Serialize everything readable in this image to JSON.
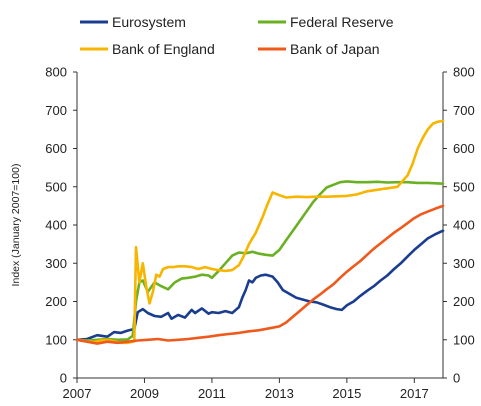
{
  "chart_data": {
    "type": "line",
    "title": "",
    "xlabel": "",
    "ylabel": "Index (January 2007=100)",
    "xlim": [
      2007,
      2017.85
    ],
    "ylim": [
      0,
      800
    ],
    "grid": false,
    "legend_position": "top",
    "x_ticks": [
      2007,
      2009,
      2011,
      2013,
      2015,
      2017
    ],
    "y_ticks": [
      0,
      100,
      200,
      300,
      400,
      500,
      600,
      700,
      800
    ],
    "x_tick_labels": [
      "2007",
      "2009",
      "2011",
      "2013",
      "2015",
      "2017"
    ],
    "y_tick_labels": [
      "0",
      "100",
      "200",
      "300",
      "400",
      "500",
      "600",
      "700",
      "800"
    ],
    "series": [
      {
        "name": "Eurosystem",
        "color": "#1a3d8f",
        "points": [
          [
            2007.0,
            100
          ],
          [
            2007.3,
            102
          ],
          [
            2007.6,
            112
          ],
          [
            2007.9,
            108
          ],
          [
            2008.1,
            120
          ],
          [
            2008.3,
            118
          ],
          [
            2008.5,
            124
          ],
          [
            2008.7,
            128
          ],
          [
            2008.8,
            172
          ],
          [
            2008.95,
            180
          ],
          [
            2009.1,
            170
          ],
          [
            2009.3,
            162
          ],
          [
            2009.5,
            160
          ],
          [
            2009.7,
            170
          ],
          [
            2009.8,
            155
          ],
          [
            2010.0,
            165
          ],
          [
            2010.2,
            158
          ],
          [
            2010.4,
            178
          ],
          [
            2010.5,
            170
          ],
          [
            2010.7,
            182
          ],
          [
            2010.9,
            168
          ],
          [
            2011.0,
            172
          ],
          [
            2011.2,
            170
          ],
          [
            2011.4,
            175
          ],
          [
            2011.6,
            170
          ],
          [
            2011.8,
            185
          ],
          [
            2011.9,
            210
          ],
          [
            2012.0,
            230
          ],
          [
            2012.1,
            255
          ],
          [
            2012.2,
            250
          ],
          [
            2012.3,
            262
          ],
          [
            2012.45,
            268
          ],
          [
            2012.6,
            270
          ],
          [
            2012.8,
            265
          ],
          [
            2012.95,
            250
          ],
          [
            2013.1,
            230
          ],
          [
            2013.3,
            220
          ],
          [
            2013.5,
            210
          ],
          [
            2013.7,
            205
          ],
          [
            2013.9,
            200
          ],
          [
            2014.1,
            198
          ],
          [
            2014.3,
            192
          ],
          [
            2014.5,
            185
          ],
          [
            2014.7,
            180
          ],
          [
            2014.85,
            178
          ],
          [
            2015.0,
            190
          ],
          [
            2015.2,
            200
          ],
          [
            2015.4,
            215
          ],
          [
            2015.6,
            228
          ],
          [
            2015.8,
            240
          ],
          [
            2016.0,
            255
          ],
          [
            2016.2,
            268
          ],
          [
            2016.4,
            285
          ],
          [
            2016.6,
            300
          ],
          [
            2016.8,
            318
          ],
          [
            2017.0,
            335
          ],
          [
            2017.2,
            350
          ],
          [
            2017.4,
            365
          ],
          [
            2017.6,
            375
          ],
          [
            2017.85,
            385
          ]
        ]
      },
      {
        "name": "Federal Reserve",
        "color": "#6ab023",
        "points": [
          [
            2007.0,
            100
          ],
          [
            2007.3,
            98
          ],
          [
            2007.6,
            100
          ],
          [
            2007.9,
            102
          ],
          [
            2008.2,
            100
          ],
          [
            2008.5,
            101
          ],
          [
            2008.65,
            110
          ],
          [
            2008.75,
            200
          ],
          [
            2008.85,
            250
          ],
          [
            2008.95,
            255
          ],
          [
            2009.1,
            225
          ],
          [
            2009.3,
            250
          ],
          [
            2009.5,
            240
          ],
          [
            2009.7,
            232
          ],
          [
            2009.9,
            250
          ],
          [
            2010.1,
            260
          ],
          [
            2010.3,
            262
          ],
          [
            2010.5,
            265
          ],
          [
            2010.7,
            270
          ],
          [
            2010.9,
            268
          ],
          [
            2011.0,
            262
          ],
          [
            2011.2,
            280
          ],
          [
            2011.4,
            300
          ],
          [
            2011.6,
            320
          ],
          [
            2011.8,
            328
          ],
          [
            2012.0,
            326
          ],
          [
            2012.2,
            330
          ],
          [
            2012.4,
            325
          ],
          [
            2012.6,
            322
          ],
          [
            2012.8,
            320
          ],
          [
            2013.0,
            335
          ],
          [
            2013.2,
            360
          ],
          [
            2013.4,
            385
          ],
          [
            2013.6,
            410
          ],
          [
            2013.8,
            435
          ],
          [
            2014.0,
            460
          ],
          [
            2014.2,
            480
          ],
          [
            2014.4,
            498
          ],
          [
            2014.6,
            505
          ],
          [
            2014.8,
            512
          ],
          [
            2015.0,
            514
          ],
          [
            2015.3,
            512
          ],
          [
            2015.6,
            512
          ],
          [
            2015.9,
            513
          ],
          [
            2016.2,
            511
          ],
          [
            2016.5,
            512
          ],
          [
            2016.8,
            512
          ],
          [
            2017.1,
            510
          ],
          [
            2017.4,
            510
          ],
          [
            2017.85,
            508
          ]
        ]
      },
      {
        "name": "Bank of England",
        "color": "#f7b500",
        "points": [
          [
            2007.0,
            100
          ],
          [
            2007.3,
            96
          ],
          [
            2007.5,
            94
          ],
          [
            2007.7,
            98
          ],
          [
            2007.9,
            100
          ],
          [
            2008.1,
            96
          ],
          [
            2008.3,
            92
          ],
          [
            2008.5,
            92
          ],
          [
            2008.7,
            96
          ],
          [
            2008.75,
            342
          ],
          [
            2008.85,
            250
          ],
          [
            2008.95,
            300
          ],
          [
            2009.05,
            240
          ],
          [
            2009.15,
            195
          ],
          [
            2009.25,
            225
          ],
          [
            2009.35,
            270
          ],
          [
            2009.45,
            265
          ],
          [
            2009.55,
            285
          ],
          [
            2009.7,
            290
          ],
          [
            2009.85,
            290
          ],
          [
            2010.0,
            292
          ],
          [
            2010.2,
            292
          ],
          [
            2010.4,
            290
          ],
          [
            2010.6,
            285
          ],
          [
            2010.8,
            290
          ],
          [
            2011.0,
            285
          ],
          [
            2011.2,
            282
          ],
          [
            2011.4,
            280
          ],
          [
            2011.6,
            282
          ],
          [
            2011.8,
            295
          ],
          [
            2011.95,
            320
          ],
          [
            2012.1,
            350
          ],
          [
            2012.3,
            380
          ],
          [
            2012.5,
            420
          ],
          [
            2012.65,
            455
          ],
          [
            2012.8,
            485
          ],
          [
            2013.0,
            478
          ],
          [
            2013.2,
            472
          ],
          [
            2013.5,
            474
          ],
          [
            2013.8,
            473
          ],
          [
            2014.1,
            474
          ],
          [
            2014.4,
            474
          ],
          [
            2014.7,
            475
          ],
          [
            2015.0,
            476
          ],
          [
            2015.3,
            480
          ],
          [
            2015.6,
            488
          ],
          [
            2015.9,
            492
          ],
          [
            2016.2,
            496
          ],
          [
            2016.5,
            500
          ],
          [
            2016.8,
            530
          ],
          [
            2016.95,
            560
          ],
          [
            2017.1,
            600
          ],
          [
            2017.25,
            628
          ],
          [
            2017.4,
            650
          ],
          [
            2017.55,
            665
          ],
          [
            2017.7,
            670
          ],
          [
            2017.85,
            672
          ]
        ]
      },
      {
        "name": "Bank of Japan",
        "color": "#ef5a1c",
        "points": [
          [
            2007.0,
            100
          ],
          [
            2007.3,
            95
          ],
          [
            2007.6,
            90
          ],
          [
            2007.9,
            95
          ],
          [
            2008.2,
            92
          ],
          [
            2008.5,
            95
          ],
          [
            2008.8,
            98
          ],
          [
            2009.1,
            100
          ],
          [
            2009.4,
            102
          ],
          [
            2009.7,
            98
          ],
          [
            2010.0,
            100
          ],
          [
            2010.3,
            102
          ],
          [
            2010.6,
            105
          ],
          [
            2010.9,
            108
          ],
          [
            2011.2,
            112
          ],
          [
            2011.5,
            115
          ],
          [
            2011.8,
            118
          ],
          [
            2012.1,
            122
          ],
          [
            2012.4,
            125
          ],
          [
            2012.7,
            130
          ],
          [
            2013.0,
            135
          ],
          [
            2013.2,
            145
          ],
          [
            2013.4,
            160
          ],
          [
            2013.6,
            175
          ],
          [
            2013.8,
            190
          ],
          [
            2014.0,
            205
          ],
          [
            2014.2,
            218
          ],
          [
            2014.4,
            232
          ],
          [
            2014.6,
            245
          ],
          [
            2014.8,
            262
          ],
          [
            2015.0,
            278
          ],
          [
            2015.2,
            292
          ],
          [
            2015.4,
            306
          ],
          [
            2015.6,
            322
          ],
          [
            2015.8,
            338
          ],
          [
            2016.0,
            352
          ],
          [
            2016.2,
            366
          ],
          [
            2016.4,
            380
          ],
          [
            2016.6,
            392
          ],
          [
            2016.8,
            405
          ],
          [
            2017.0,
            418
          ],
          [
            2017.2,
            428
          ],
          [
            2017.4,
            435
          ],
          [
            2017.6,
            442
          ],
          [
            2017.85,
            450
          ]
        ]
      }
    ]
  }
}
